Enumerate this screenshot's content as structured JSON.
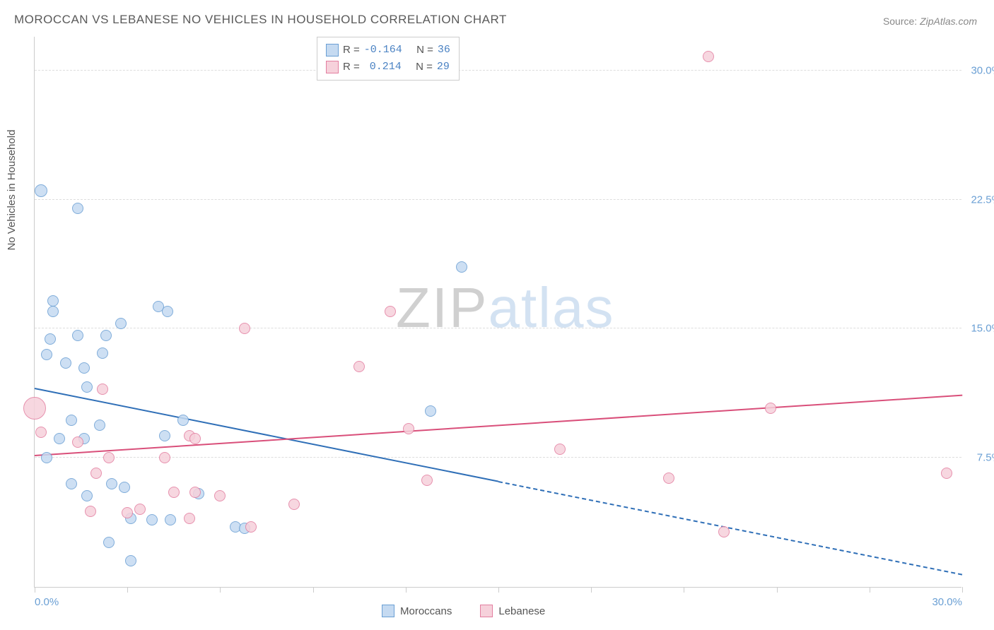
{
  "title": "MOROCCAN VS LEBANESE NO VEHICLES IN HOUSEHOLD CORRELATION CHART",
  "source_label": "Source:",
  "source_value": "ZipAtlas.com",
  "yaxis_label": "No Vehicles in Household",
  "watermark_zip": "ZIP",
  "watermark_atlas": "atlas",
  "chart": {
    "type": "scatter",
    "xlim": [
      0,
      30
    ],
    "ylim": [
      0,
      32
    ],
    "yticks": [
      {
        "v": 7.5,
        "label": "7.5%"
      },
      {
        "v": 15.0,
        "label": "15.0%"
      },
      {
        "v": 22.5,
        "label": "22.5%"
      },
      {
        "v": 30.0,
        "label": "30.0%"
      }
    ],
    "xtick_positions": [
      0,
      3,
      6,
      9,
      12,
      15,
      18,
      21,
      24,
      27,
      30
    ],
    "xtick_labels": [
      {
        "v": 0,
        "label": "0.0%"
      },
      {
        "v": 30,
        "label": "30.0%"
      }
    ],
    "background_color": "#ffffff",
    "grid_color": "#dddddd",
    "series": [
      {
        "name": "Moroccans",
        "fill": "#c5daf1",
        "stroke": "#6a9fd4",
        "line_color": "#2f6fb7",
        "R": "-0.164",
        "N": "36",
        "trend": {
          "x1": 0,
          "y1": 11.6,
          "x2_solid": 15,
          "y2_solid": 6.2,
          "x2": 30,
          "y2": 0.8
        },
        "points": [
          {
            "x": 0.2,
            "y": 23.0,
            "r": 9
          },
          {
            "x": 1.4,
            "y": 22.0,
            "r": 8
          },
          {
            "x": 0.6,
            "y": 16.6,
            "r": 8
          },
          {
            "x": 0.6,
            "y": 16.0,
            "r": 8
          },
          {
            "x": 0.5,
            "y": 14.4,
            "r": 8
          },
          {
            "x": 1.4,
            "y": 14.6,
            "r": 8
          },
          {
            "x": 2.3,
            "y": 14.6,
            "r": 8
          },
          {
            "x": 2.8,
            "y": 15.3,
            "r": 8
          },
          {
            "x": 4.0,
            "y": 16.3,
            "r": 8
          },
          {
            "x": 4.3,
            "y": 16.0,
            "r": 8
          },
          {
            "x": 0.4,
            "y": 13.5,
            "r": 8
          },
          {
            "x": 1.0,
            "y": 13.0,
            "r": 8
          },
          {
            "x": 1.6,
            "y": 12.7,
            "r": 8
          },
          {
            "x": 2.2,
            "y": 13.6,
            "r": 8
          },
          {
            "x": 1.7,
            "y": 11.6,
            "r": 8
          },
          {
            "x": 1.2,
            "y": 9.7,
            "r": 8
          },
          {
            "x": 2.1,
            "y": 9.4,
            "r": 8
          },
          {
            "x": 0.8,
            "y": 8.6,
            "r": 8
          },
          {
            "x": 1.6,
            "y": 8.6,
            "r": 8
          },
          {
            "x": 0.4,
            "y": 7.5,
            "r": 8
          },
          {
            "x": 1.2,
            "y": 6.0,
            "r": 8
          },
          {
            "x": 2.5,
            "y": 6.0,
            "r": 8
          },
          {
            "x": 2.9,
            "y": 5.8,
            "r": 8
          },
          {
            "x": 1.7,
            "y": 5.3,
            "r": 8
          },
          {
            "x": 3.1,
            "y": 4.0,
            "r": 8
          },
          {
            "x": 3.8,
            "y": 3.9,
            "r": 8
          },
          {
            "x": 4.4,
            "y": 3.9,
            "r": 8
          },
          {
            "x": 2.4,
            "y": 2.6,
            "r": 8
          },
          {
            "x": 3.1,
            "y": 1.5,
            "r": 8
          },
          {
            "x": 4.8,
            "y": 9.7,
            "r": 8
          },
          {
            "x": 4.2,
            "y": 8.8,
            "r": 8
          },
          {
            "x": 6.5,
            "y": 3.5,
            "r": 8
          },
          {
            "x": 6.8,
            "y": 3.4,
            "r": 8
          },
          {
            "x": 12.8,
            "y": 10.2,
            "r": 8
          },
          {
            "x": 13.8,
            "y": 18.6,
            "r": 8
          },
          {
            "x": 5.3,
            "y": 5.4,
            "r": 8
          }
        ]
      },
      {
        "name": "Lebanese",
        "fill": "#f6d1db",
        "stroke": "#e37ea0",
        "line_color": "#d94f7a",
        "R": "0.214",
        "N": "29",
        "trend": {
          "x1": 0,
          "y1": 7.7,
          "x2_solid": 30,
          "y2_solid": 11.2,
          "x2": 30,
          "y2": 11.2
        },
        "points": [
          {
            "x": 0.0,
            "y": 10.4,
            "r": 16
          },
          {
            "x": 0.2,
            "y": 9.0,
            "r": 8
          },
          {
            "x": 1.4,
            "y": 8.4,
            "r": 8
          },
          {
            "x": 2.2,
            "y": 11.5,
            "r": 8
          },
          {
            "x": 2.4,
            "y": 7.5,
            "r": 8
          },
          {
            "x": 2.0,
            "y": 6.6,
            "r": 8
          },
          {
            "x": 1.8,
            "y": 4.4,
            "r": 8
          },
          {
            "x": 3.0,
            "y": 4.3,
            "r": 8
          },
          {
            "x": 3.4,
            "y": 4.5,
            "r": 8
          },
          {
            "x": 4.5,
            "y": 5.5,
            "r": 8
          },
          {
            "x": 5.2,
            "y": 5.5,
            "r": 8
          },
          {
            "x": 4.2,
            "y": 7.5,
            "r": 8
          },
          {
            "x": 5.0,
            "y": 8.8,
            "r": 8
          },
          {
            "x": 5.2,
            "y": 8.6,
            "r": 8
          },
          {
            "x": 5.0,
            "y": 4.0,
            "r": 8
          },
          {
            "x": 6.0,
            "y": 5.3,
            "r": 8
          },
          {
            "x": 7.0,
            "y": 3.5,
            "r": 8
          },
          {
            "x": 6.8,
            "y": 15.0,
            "r": 8
          },
          {
            "x": 8.4,
            "y": 4.8,
            "r": 8
          },
          {
            "x": 10.5,
            "y": 12.8,
            "r": 8
          },
          {
            "x": 11.5,
            "y": 16.0,
            "r": 8
          },
          {
            "x": 12.7,
            "y": 6.2,
            "r": 8
          },
          {
            "x": 12.1,
            "y": 9.2,
            "r": 8
          },
          {
            "x": 17.0,
            "y": 8.0,
            "r": 8
          },
          {
            "x": 20.5,
            "y": 6.3,
            "r": 8
          },
          {
            "x": 22.3,
            "y": 3.2,
            "r": 8
          },
          {
            "x": 23.8,
            "y": 10.4,
            "r": 8
          },
          {
            "x": 21.8,
            "y": 30.8,
            "r": 8
          },
          {
            "x": 29.5,
            "y": 6.6,
            "r": 8
          }
        ]
      }
    ]
  },
  "legend_top": {
    "r_label": "R =",
    "n_label": "N ="
  },
  "legend_bottom": [
    {
      "label": "Moroccans",
      "fill": "#c5daf1",
      "stroke": "#6a9fd4"
    },
    {
      "label": "Lebanese",
      "fill": "#f6d1db",
      "stroke": "#e37ea0"
    }
  ]
}
